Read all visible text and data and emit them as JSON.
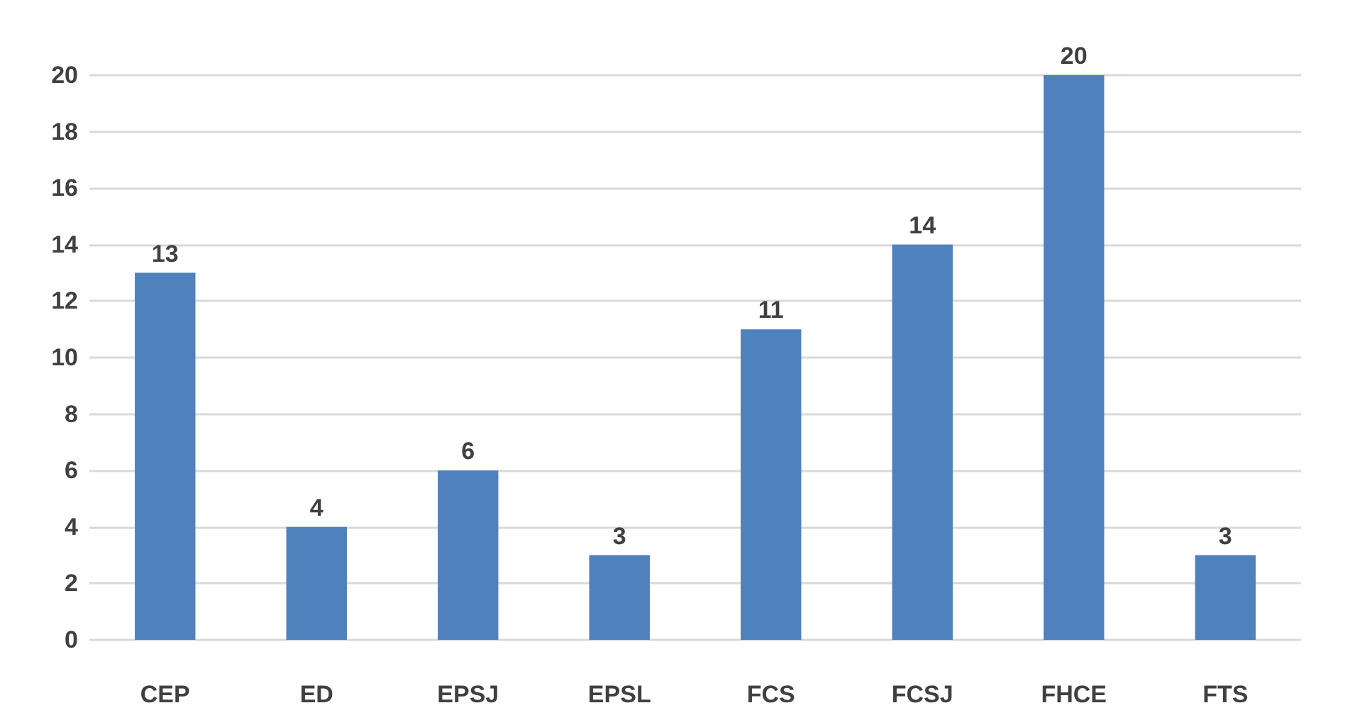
{
  "chart_data": {
    "type": "bar",
    "categories": [
      "CEP",
      "ED",
      "EPSJ",
      "EPSL",
      "FCS",
      "FCSJ",
      "FHCE",
      "FTS"
    ],
    "values": [
      13,
      4,
      6,
      3,
      11,
      14,
      20,
      3
    ],
    "color": "#4f81bd",
    "ylim": [
      0,
      20
    ],
    "yticks": [
      0,
      2,
      4,
      6,
      8,
      10,
      12,
      14,
      16,
      18,
      20
    ],
    "grid": "y",
    "data_labels": true
  }
}
